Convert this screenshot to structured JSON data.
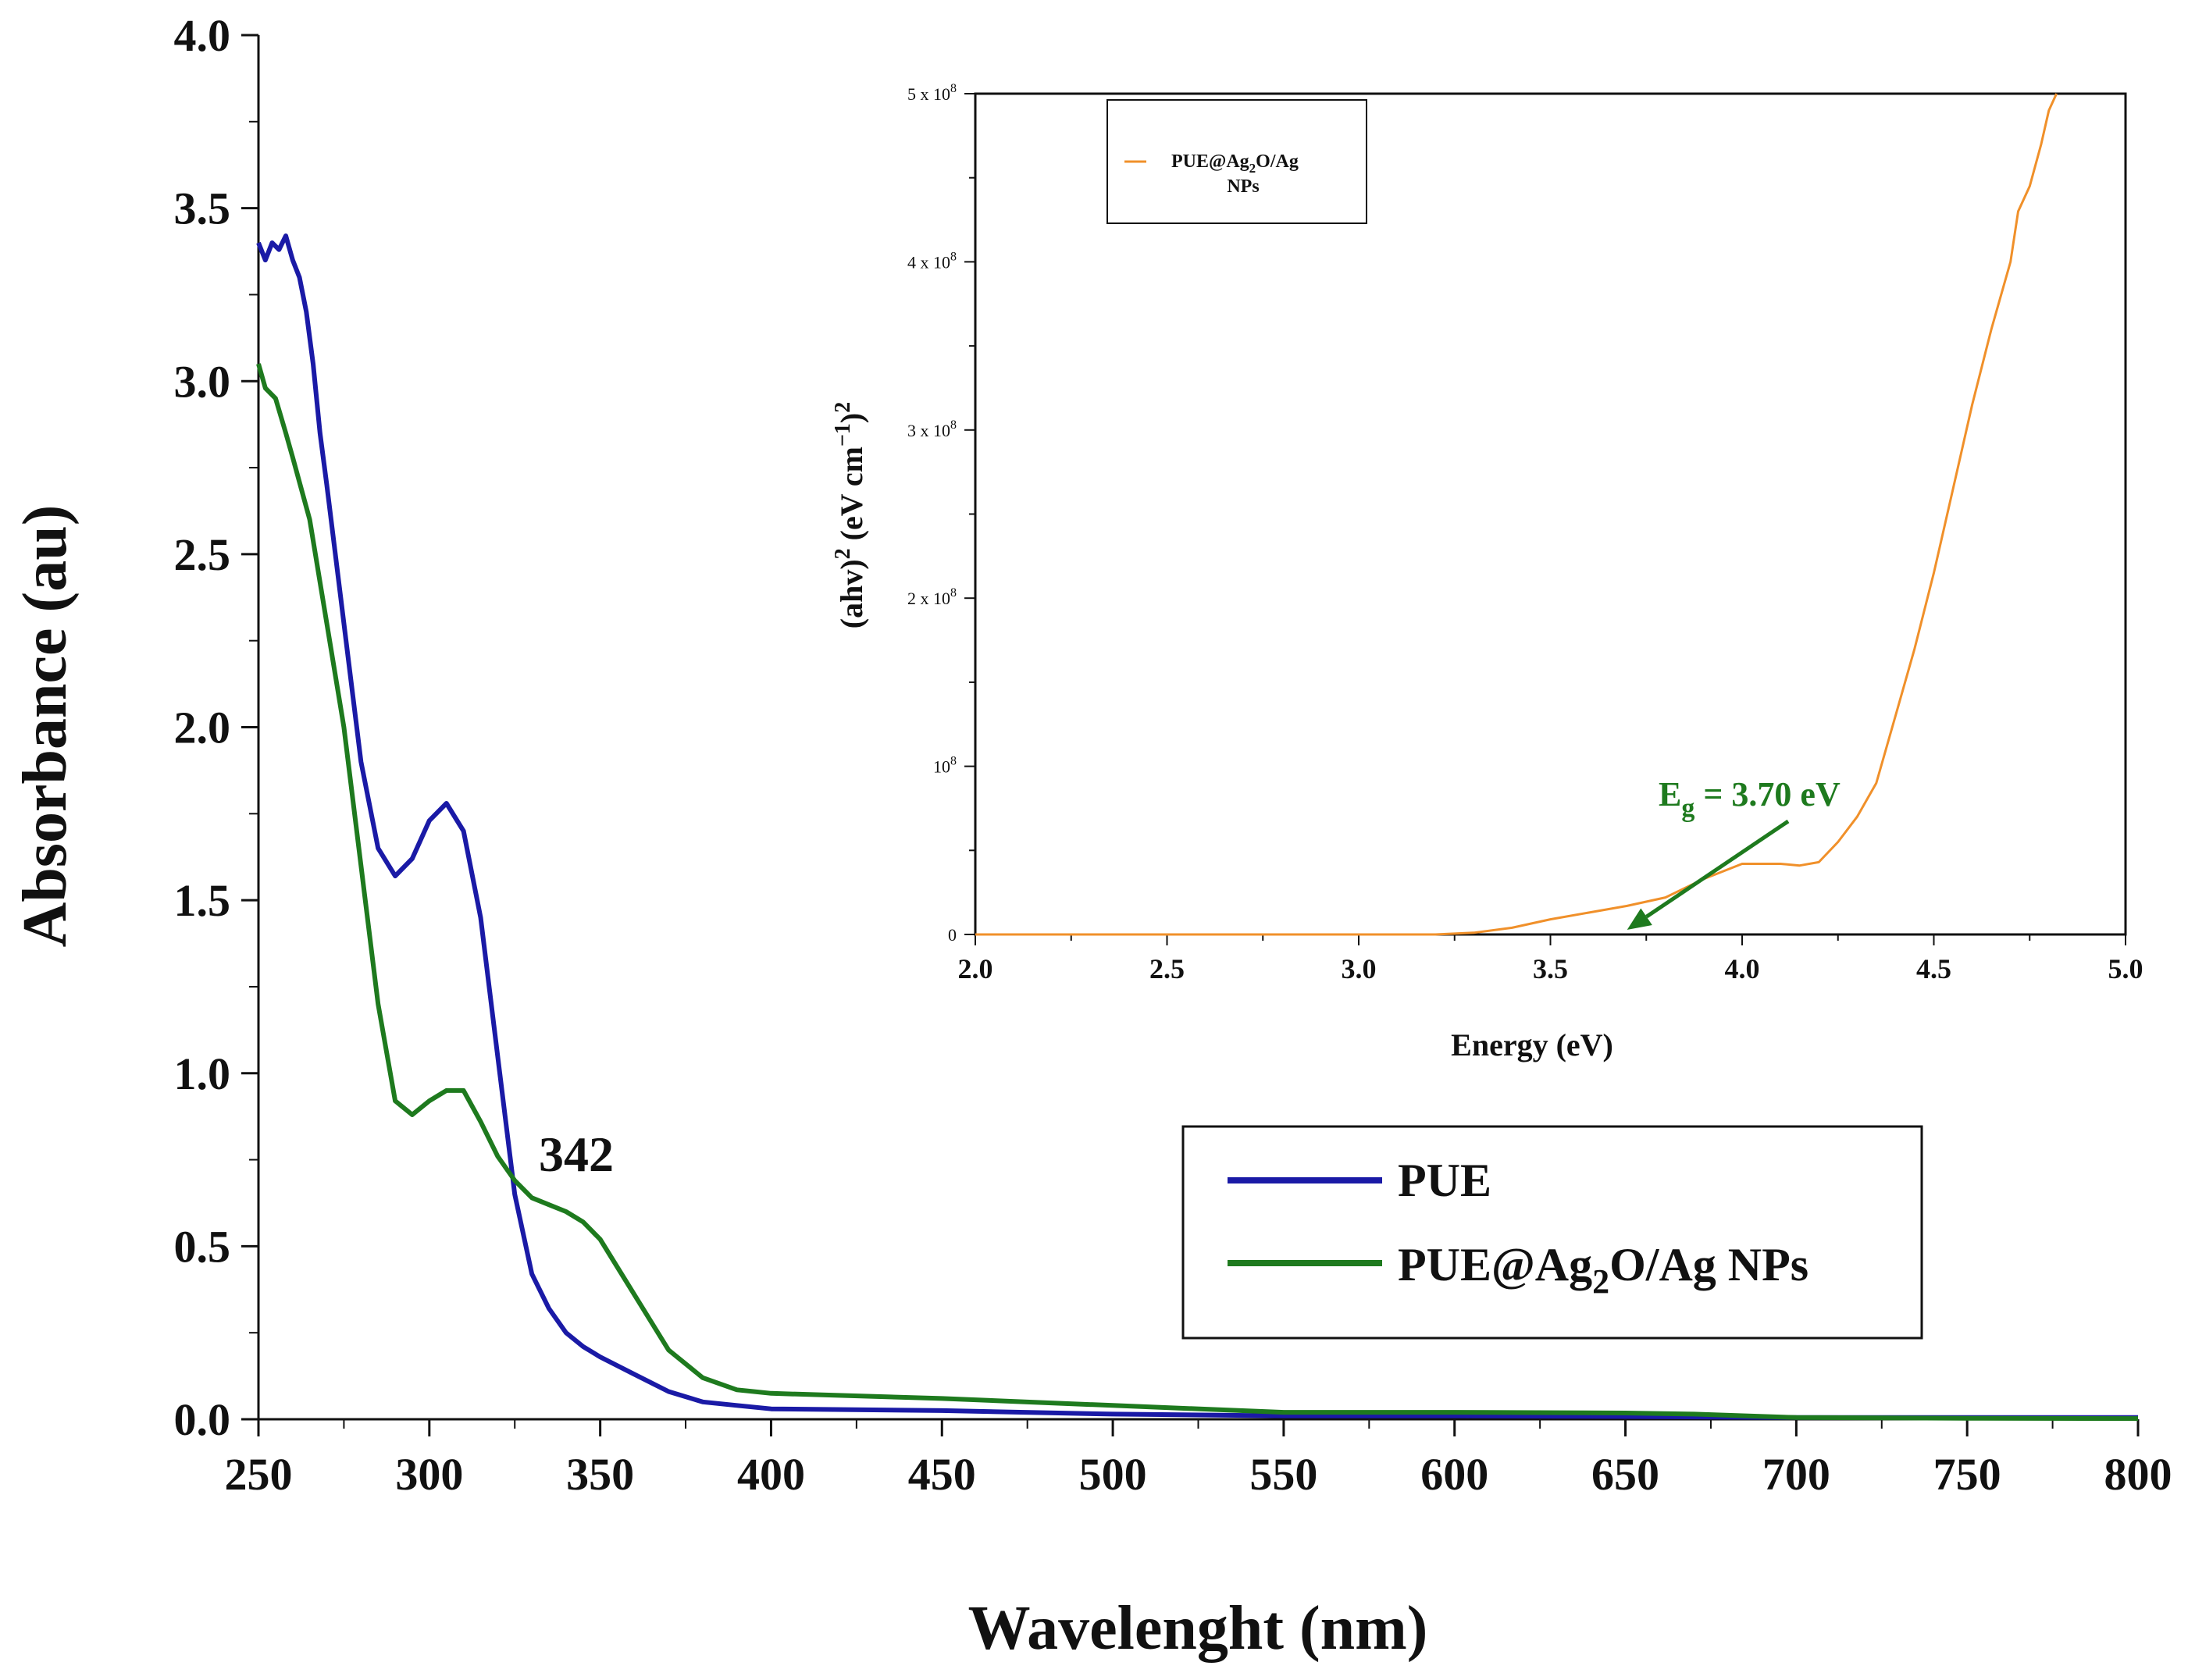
{
  "chart_data": [
    {
      "type": "line",
      "xlabel": "Wavelenght (nm)",
      "ylabel": "Absorbance (au)",
      "xlim": [
        250,
        800
      ],
      "ylim": [
        0.0,
        4.0
      ],
      "xticks": [
        "250",
        "300",
        "350",
        "400",
        "450",
        "500",
        "550",
        "600",
        "650",
        "700",
        "750",
        "800"
      ],
      "yticks": [
        "0.0",
        "0.5",
        "1.0",
        "1.5",
        "2.0",
        "2.5",
        "3.0",
        "3.5",
        "4.0"
      ],
      "legend_position": "lower-right",
      "annotations": [
        {
          "text": "342",
          "x": 342
        }
      ],
      "series": [
        {
          "name": "PUE",
          "color": "#1a1aa6",
          "x": [
            250,
            252,
            254,
            256,
            258,
            260,
            262,
            264,
            266,
            268,
            270,
            275,
            280,
            285,
            290,
            295,
            300,
            305,
            310,
            315,
            320,
            325,
            330,
            335,
            340,
            345,
            350,
            360,
            370,
            380,
            390,
            400,
            450,
            500,
            550,
            600,
            650,
            700,
            750,
            800
          ],
          "y": [
            3.4,
            3.35,
            3.4,
            3.38,
            3.42,
            3.35,
            3.3,
            3.2,
            3.05,
            2.85,
            2.7,
            2.3,
            1.9,
            1.65,
            1.57,
            1.62,
            1.73,
            1.78,
            1.7,
            1.45,
            1.05,
            0.65,
            0.42,
            0.32,
            0.25,
            0.21,
            0.18,
            0.13,
            0.08,
            0.05,
            0.04,
            0.03,
            0.025,
            0.015,
            0.01,
            0.01,
            0.008,
            0.005,
            0.005,
            0.005
          ]
        },
        {
          "name": "PUE@Ag2O/Ag NPs",
          "color": "#1e7a1e",
          "x": [
            250,
            252,
            255,
            258,
            260,
            265,
            270,
            275,
            280,
            285,
            290,
            295,
            300,
            305,
            310,
            315,
            320,
            325,
            330,
            335,
            340,
            345,
            350,
            355,
            360,
            370,
            380,
            390,
            400,
            450,
            500,
            550,
            600,
            650,
            670,
            700,
            750,
            800
          ],
          "y": [
            3.05,
            2.98,
            2.95,
            2.85,
            2.78,
            2.6,
            2.3,
            2.0,
            1.6,
            1.2,
            0.92,
            0.88,
            0.92,
            0.95,
            0.95,
            0.86,
            0.76,
            0.69,
            0.64,
            0.62,
            0.6,
            0.57,
            0.52,
            0.44,
            0.36,
            0.2,
            0.12,
            0.085,
            0.075,
            0.06,
            0.04,
            0.02,
            0.02,
            0.018,
            0.015,
            0.005,
            0.003,
            0.002
          ]
        }
      ]
    },
    {
      "type": "line",
      "xlabel": "Energy (eV)",
      "xlim": [
        2.0,
        5.0
      ],
      "ylim": [
        0,
        500000000
      ],
      "xticks": [
        "2.0",
        "2.5",
        "3.0",
        "3.5",
        "4.0",
        "4.5",
        "5.0"
      ],
      "ytick_values": [
        0,
        100000000,
        200000000,
        300000000,
        400000000,
        500000000
      ],
      "ytick_mantissa": [
        "",
        "",
        "2 x ",
        "3 x ",
        "4 x ",
        "5 x "
      ],
      "ytick_zero": "0",
      "ytick_base": "10",
      "ytick_exp": "8",
      "legend_position": "top-left",
      "annotation": {
        "text_main": "E",
        "text_sub": "g",
        "text_rest": " = 3.70 eV",
        "arrow_to_x": 3.7
      },
      "series": [
        {
          "name": "PUE@Ag2O/Ag NPs",
          "color": "#f0902a",
          "x": [
            2.0,
            2.5,
            3.0,
            3.2,
            3.3,
            3.4,
            3.5,
            3.6,
            3.7,
            3.8,
            3.9,
            4.0,
            4.1,
            4.15,
            4.2,
            4.25,
            4.3,
            4.35,
            4.4,
            4.45,
            4.5,
            4.55,
            4.6,
            4.65,
            4.7,
            4.72,
            4.75,
            4.78,
            4.8,
            4.82
          ],
          "y": [
            0,
            0,
            0,
            0,
            1000000,
            4000000,
            9000000,
            13000000,
            17000000,
            22000000,
            33000000,
            42000000,
            42000000,
            41000000,
            43000000,
            55000000,
            70000000,
            90000000,
            130000000,
            170000000,
            215000000,
            265000000,
            315000000,
            360000000,
            400000000,
            430000000,
            445000000,
            470000000,
            490000000,
            500000000
          ]
        }
      ]
    }
  ],
  "main_legend": {
    "items": [
      {
        "label": "PUE"
      },
      {
        "label_main": "PUE@Ag",
        "label_sub": "2",
        "label_rest": "O/Ag NPs"
      }
    ]
  },
  "inset_legend": {
    "line1_main": "PUE@Ag",
    "line1_sub": "2",
    "line1_rest": "O/Ag",
    "line2": "NPs"
  },
  "inset_ylabel": {
    "p1": "(ahv)",
    "sup1": "2",
    "p2": " (eV cm",
    "sup2": "−1",
    "p3": ")",
    "sup3": "2"
  }
}
